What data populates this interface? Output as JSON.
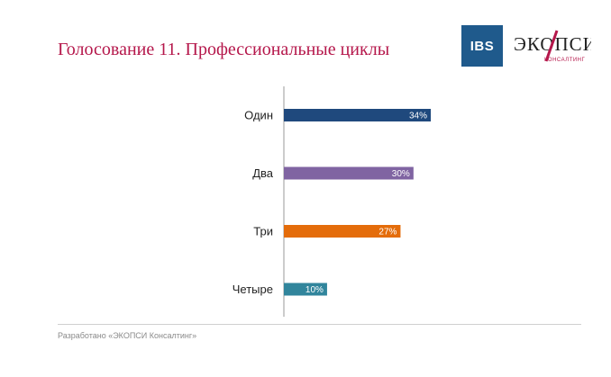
{
  "slide": {
    "title": "Голосование 11. Профессиональные циклы",
    "footer": "Разработано «ЭКОПСИ Консалтинг»"
  },
  "logos": {
    "ibs": {
      "text": "IBS",
      "color": "#1f5a8c"
    },
    "ekopsi": {
      "text": "ЭКОПСИ",
      "sub": "КОНСАЛТИНГ",
      "color": "#222222",
      "accent": "#b5174b"
    }
  },
  "chart_data": {
    "type": "bar",
    "orientation": "horizontal",
    "categories": [
      "Один",
      "Два",
      "Три",
      "Четыре"
    ],
    "values": [
      34,
      30,
      27,
      10
    ],
    "value_labels": [
      "34%",
      "30%",
      "27%",
      "10%"
    ],
    "colors": [
      "#1f497d",
      "#8064a2",
      "#e46c0a",
      "#31859c"
    ],
    "unit": "%",
    "xlim": [
      0,
      50
    ],
    "title": "",
    "xlabel": "",
    "ylabel": "",
    "grid": false,
    "legend": "none"
  }
}
